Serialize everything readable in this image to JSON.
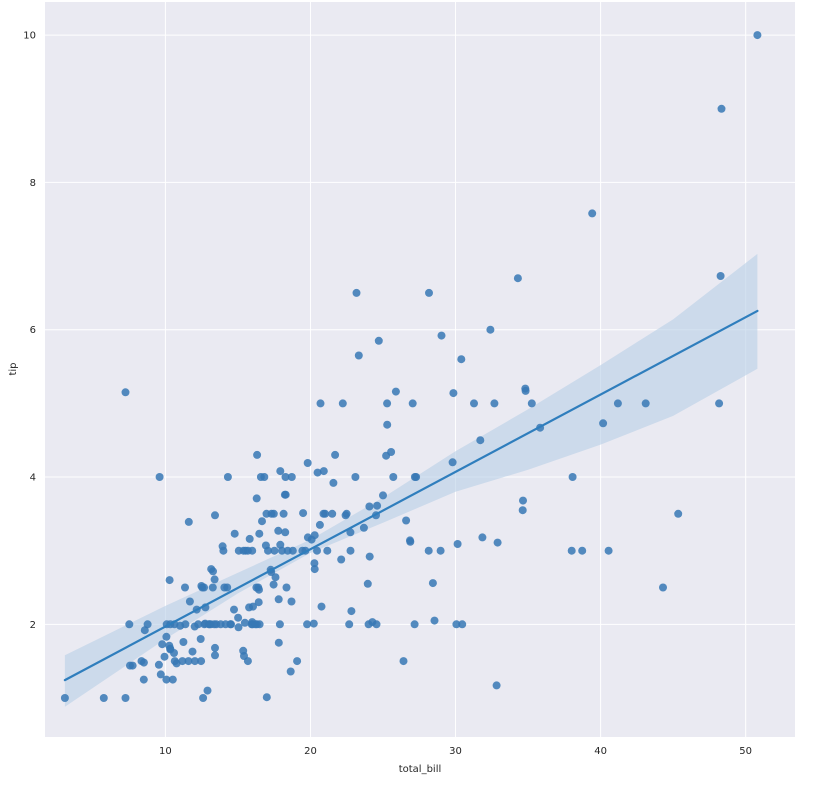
{
  "chart_data": {
    "type": "scatter",
    "title": "",
    "xlabel": "total_bill",
    "ylabel": "tip",
    "xlim": [
      1.7,
      53.4
    ],
    "ylim": [
      0.47,
      10.45
    ],
    "xticks": [
      "10",
      "20",
      "30",
      "40",
      "50"
    ],
    "yticks": [
      "2",
      "4",
      "6",
      "8",
      "10"
    ],
    "grid": true,
    "legend": "none",
    "colors": {
      "background": "#eaeaf2",
      "grid": "#ffffff",
      "points": "#3778b5",
      "regression": "#2f7ebd",
      "ci_band": "#b8cfe6"
    },
    "regression": {
      "intercept": 0.92,
      "slope": 0.105
    },
    "ci_band": {
      "x": [
        3.07,
        10,
        15,
        20,
        25,
        30,
        35,
        40,
        45,
        50.81
      ],
      "lower": [
        0.88,
        1.8,
        2.42,
        2.97,
        3.38,
        3.8,
        4.1,
        4.44,
        4.83,
        5.47
      ],
      "upper": [
        1.58,
        2.25,
        2.7,
        3.15,
        3.72,
        4.35,
        4.92,
        5.52,
        6.14,
        7.03
      ]
    },
    "points": [
      [
        3.07,
        1.0
      ],
      [
        5.75,
        1.0
      ],
      [
        7.25,
        1.0
      ],
      [
        7.25,
        5.15
      ],
      [
        7.51,
        2.0
      ],
      [
        7.56,
        1.44
      ],
      [
        7.74,
        1.44
      ],
      [
        8.35,
        1.5
      ],
      [
        8.51,
        1.25
      ],
      [
        8.52,
        1.48
      ],
      [
        8.58,
        1.92
      ],
      [
        8.77,
        2.0
      ],
      [
        9.55,
        1.45
      ],
      [
        9.6,
        4.0
      ],
      [
        9.68,
        1.32
      ],
      [
        9.78,
        1.73
      ],
      [
        9.94,
        1.56
      ],
      [
        10.07,
        1.83
      ],
      [
        10.07,
        1.25
      ],
      [
        10.09,
        2.0
      ],
      [
        10.27,
        1.71
      ],
      [
        10.29,
        2.6
      ],
      [
        10.33,
        1.67
      ],
      [
        10.34,
        1.66
      ],
      [
        10.34,
        2.0
      ],
      [
        10.51,
        1.25
      ],
      [
        10.59,
        1.61
      ],
      [
        10.63,
        2.0
      ],
      [
        10.65,
        1.5
      ],
      [
        10.77,
        1.47
      ],
      [
        11.02,
        1.98
      ],
      [
        11.17,
        1.5
      ],
      [
        11.24,
        1.76
      ],
      [
        11.35,
        2.5
      ],
      [
        11.38,
        2.0
      ],
      [
        11.59,
        1.5
      ],
      [
        11.61,
        3.39
      ],
      [
        11.69,
        2.31
      ],
      [
        11.87,
        1.63
      ],
      [
        12.02,
        1.97
      ],
      [
        12.03,
        1.5
      ],
      [
        12.16,
        2.2
      ],
      [
        12.26,
        2.0
      ],
      [
        12.43,
        1.8
      ],
      [
        12.46,
        1.5
      ],
      [
        12.48,
        2.52
      ],
      [
        12.54,
        2.5
      ],
      [
        12.6,
        1.0
      ],
      [
        12.66,
        2.5
      ],
      [
        12.69,
        2.0
      ],
      [
        12.74,
        2.01
      ],
      [
        12.76,
        2.23
      ],
      [
        12.9,
        1.1
      ],
      [
        13.0,
        2.0
      ],
      [
        13.03,
        2.0
      ],
      [
        13.13,
        2.0
      ],
      [
        13.16,
        2.75
      ],
      [
        13.27,
        2.5
      ],
      [
        13.28,
        2.72
      ],
      [
        13.37,
        2.0
      ],
      [
        13.39,
        2.61
      ],
      [
        13.42,
        3.48
      ],
      [
        13.42,
        1.68
      ],
      [
        13.42,
        1.58
      ],
      [
        13.51,
        2.0
      ],
      [
        13.81,
        2.0
      ],
      [
        13.94,
        3.06
      ],
      [
        14.0,
        3.0
      ],
      [
        14.07,
        2.5
      ],
      [
        14.15,
        2.0
      ],
      [
        14.26,
        2.5
      ],
      [
        14.31,
        4.0
      ],
      [
        14.48,
        2.0
      ],
      [
        14.52,
        2.0
      ],
      [
        14.73,
        2.2
      ],
      [
        14.78,
        3.23
      ],
      [
        15.01,
        2.09
      ],
      [
        15.04,
        1.96
      ],
      [
        15.06,
        3.0
      ],
      [
        15.36,
        1.64
      ],
      [
        15.38,
        3.0
      ],
      [
        15.42,
        1.57
      ],
      [
        15.48,
        2.02
      ],
      [
        15.53,
        3.0
      ],
      [
        15.69,
        3.0
      ],
      [
        15.69,
        1.5
      ],
      [
        15.77,
        2.23
      ],
      [
        15.81,
        3.16
      ],
      [
        15.95,
        2.0
      ],
      [
        15.98,
        2.03
      ],
      [
        15.98,
        3.0
      ],
      [
        16.0,
        2.0
      ],
      [
        16.04,
        2.24
      ],
      [
        16.21,
        2.0
      ],
      [
        16.27,
        2.5
      ],
      [
        16.29,
        3.71
      ],
      [
        16.31,
        2.0
      ],
      [
        16.32,
        4.3
      ],
      [
        16.4,
        2.5
      ],
      [
        16.43,
        2.3
      ],
      [
        16.45,
        2.47
      ],
      [
        16.47,
        3.23
      ],
      [
        16.49,
        2.0
      ],
      [
        16.58,
        4.0
      ],
      [
        16.66,
        3.4
      ],
      [
        16.82,
        4.0
      ],
      [
        16.93,
        3.07
      ],
      [
        16.97,
        3.5
      ],
      [
        16.99,
        1.01
      ],
      [
        17.07,
        3.0
      ],
      [
        17.26,
        2.74
      ],
      [
        17.29,
        2.71
      ],
      [
        17.31,
        3.5
      ],
      [
        17.46,
        2.54
      ],
      [
        17.47,
        3.5
      ],
      [
        17.51,
        3.0
      ],
      [
        17.59,
        2.64
      ],
      [
        17.78,
        3.27
      ],
      [
        17.81,
        2.34
      ],
      [
        17.82,
        1.75
      ],
      [
        17.89,
        2.0
      ],
      [
        17.92,
        4.08
      ],
      [
        17.92,
        3.08
      ],
      [
        18.04,
        3.0
      ],
      [
        18.15,
        3.5
      ],
      [
        18.24,
        3.76
      ],
      [
        18.26,
        3.25
      ],
      [
        18.28,
        4.0
      ],
      [
        18.29,
        3.76
      ],
      [
        18.35,
        2.5
      ],
      [
        18.43,
        3.0
      ],
      [
        18.64,
        1.36
      ],
      [
        18.69,
        2.31
      ],
      [
        18.71,
        4.0
      ],
      [
        18.78,
        3.0
      ],
      [
        19.08,
        1.5
      ],
      [
        19.44,
        3.0
      ],
      [
        19.49,
        3.51
      ],
      [
        19.65,
        3.0
      ],
      [
        19.77,
        2.0
      ],
      [
        19.81,
        4.19
      ],
      [
        19.82,
        3.18
      ],
      [
        20.08,
        3.15
      ],
      [
        20.23,
        2.01
      ],
      [
        20.27,
        2.83
      ],
      [
        20.29,
        2.75
      ],
      [
        20.29,
        3.21
      ],
      [
        20.45,
        3.0
      ],
      [
        20.49,
        4.06
      ],
      [
        20.65,
        3.35
      ],
      [
        20.69,
        5.0
      ],
      [
        20.76,
        2.24
      ],
      [
        20.9,
        3.5
      ],
      [
        20.92,
        4.08
      ],
      [
        21.01,
        3.5
      ],
      [
        21.16,
        3.0
      ],
      [
        21.5,
        3.5
      ],
      [
        21.58,
        3.92
      ],
      [
        21.7,
        4.3
      ],
      [
        22.12,
        2.88
      ],
      [
        22.23,
        5.0
      ],
      [
        22.42,
        3.48
      ],
      [
        22.49,
        3.5
      ],
      [
        22.67,
        2.0
      ],
      [
        22.75,
        3.25
      ],
      [
        22.76,
        3.0
      ],
      [
        22.82,
        2.18
      ],
      [
        23.1,
        4.0
      ],
      [
        23.17,
        6.5
      ],
      [
        23.33,
        5.65
      ],
      [
        23.68,
        3.31
      ],
      [
        23.95,
        2.55
      ],
      [
        24.01,
        2.0
      ],
      [
        24.06,
        3.6
      ],
      [
        24.08,
        2.92
      ],
      [
        24.27,
        2.03
      ],
      [
        24.52,
        3.48
      ],
      [
        24.55,
        2.0
      ],
      [
        24.59,
        3.61
      ],
      [
        24.71,
        5.85
      ],
      [
        25.0,
        3.75
      ],
      [
        25.21,
        4.29
      ],
      [
        25.28,
        5.0
      ],
      [
        25.29,
        4.71
      ],
      [
        25.56,
        4.34
      ],
      [
        25.71,
        4.0
      ],
      [
        25.89,
        5.16
      ],
      [
        26.41,
        1.5
      ],
      [
        26.59,
        3.41
      ],
      [
        26.88,
        3.12
      ],
      [
        26.86,
        3.14
      ],
      [
        27.05,
        5.0
      ],
      [
        27.18,
        2.0
      ],
      [
        27.2,
        4.0
      ],
      [
        27.28,
        4.0
      ],
      [
        28.15,
        3.0
      ],
      [
        28.17,
        6.5
      ],
      [
        28.44,
        2.56
      ],
      [
        28.55,
        2.05
      ],
      [
        28.97,
        3.0
      ],
      [
        29.03,
        5.92
      ],
      [
        29.8,
        4.2
      ],
      [
        29.85,
        5.14
      ],
      [
        30.06,
        2.0
      ],
      [
        30.14,
        3.09
      ],
      [
        30.4,
        5.6
      ],
      [
        30.46,
        2.0
      ],
      [
        31.27,
        5.0
      ],
      [
        31.71,
        4.5
      ],
      [
        31.85,
        3.18
      ],
      [
        32.4,
        6.0
      ],
      [
        32.68,
        5.0
      ],
      [
        32.83,
        1.17
      ],
      [
        32.9,
        3.11
      ],
      [
        34.3,
        6.7
      ],
      [
        34.63,
        3.55
      ],
      [
        34.65,
        3.68
      ],
      [
        34.81,
        5.2
      ],
      [
        34.83,
        5.17
      ],
      [
        35.26,
        5.0
      ],
      [
        35.83,
        4.67
      ],
      [
        38.01,
        3.0
      ],
      [
        38.07,
        4.0
      ],
      [
        38.73,
        3.0
      ],
      [
        39.42,
        7.58
      ],
      [
        40.17,
        4.73
      ],
      [
        40.55,
        3.0
      ],
      [
        41.19,
        5.0
      ],
      [
        43.11,
        5.0
      ],
      [
        44.3,
        2.5
      ],
      [
        45.35,
        3.5
      ],
      [
        48.17,
        5.0
      ],
      [
        48.27,
        6.73
      ],
      [
        48.33,
        9.0
      ],
      [
        50.81,
        10.0
      ]
    ]
  }
}
